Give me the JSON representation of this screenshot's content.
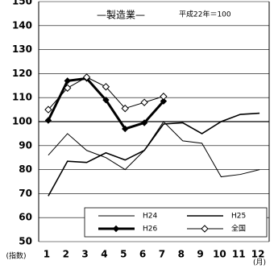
{
  "chart_data": {
    "type": "line",
    "title": "—製造業—",
    "subtitle": "平成22年＝100",
    "y_label": "(指数)",
    "x_label": "(月)",
    "categories": [
      "1",
      "2",
      "3",
      "4",
      "5",
      "6",
      "7",
      "8",
      "9",
      "10",
      "11",
      "12"
    ],
    "ylim": [
      50,
      150
    ],
    "yticks": [
      50,
      60,
      70,
      80,
      90,
      100,
      110,
      120,
      130,
      140,
      150
    ],
    "grid": true,
    "series": [
      {
        "name": "H24",
        "color": "#000000",
        "width": 1,
        "marker": "none",
        "values": [
          86,
          95,
          88,
          85,
          80,
          88,
          100,
          92,
          91,
          77,
          78,
          80
        ]
      },
      {
        "name": "H25",
        "color": "#000000",
        "width": 1.6,
        "marker": "none",
        "values": [
          69,
          83.5,
          83,
          87,
          84,
          88,
          99,
          99.5,
          95,
          100,
          103,
          103.5
        ]
      },
      {
        "name": "H26",
        "color": "#000000",
        "width": 3,
        "marker": "filled-diamond",
        "values": [
          100.5,
          117,
          118,
          109,
          97,
          99.5,
          108.5,
          null,
          null,
          null,
          null,
          null
        ]
      },
      {
        "name": "全国",
        "color": "#000000",
        "width": 1,
        "marker": "open-diamond",
        "values": [
          105,
          114,
          118.5,
          114.5,
          105.5,
          108,
          110.5,
          null,
          null,
          null,
          null,
          null
        ]
      }
    ]
  }
}
